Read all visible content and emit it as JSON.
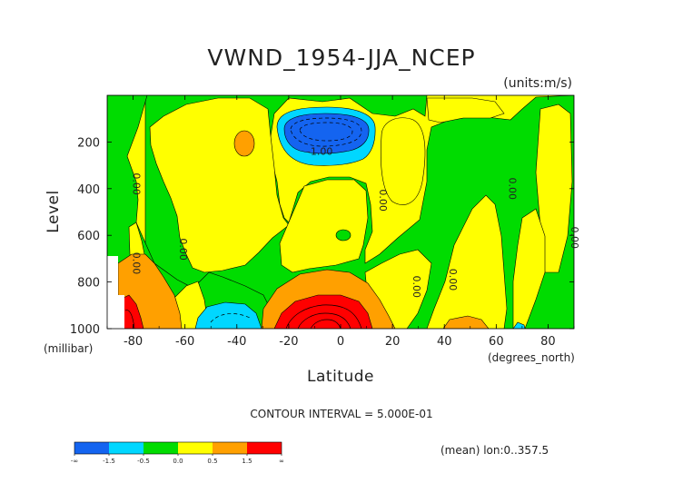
{
  "chart_data": {
    "type": "heatmap",
    "title": "VWND_1954-JJA_NCEP",
    "units": "(units:m/s)",
    "xlabel": "Latitude",
    "ylabel": "Level",
    "x_unit": "(degrees_north)",
    "y_unit": "(millibar)",
    "xlim": [
      -90,
      90
    ],
    "ylim": [
      1000,
      0
    ],
    "x_ticks": [
      -80,
      -60,
      -40,
      -20,
      0,
      20,
      40,
      60,
      80
    ],
    "y_ticks": [
      200,
      400,
      600,
      800,
      1000
    ],
    "contour_interval": "CONTOUR INTERVAL = 5.000E-01",
    "footnote": "(mean) lon:0..357.5",
    "contour_labels": [
      {
        "text": "-1.00",
        "x": -8,
        "y": 255
      },
      {
        "text": "0.00",
        "x": -80,
        "y": 380
      },
      {
        "text": "0.00",
        "x": -62,
        "y": 660
      },
      {
        "text": "0.00",
        "x": -80,
        "y": 720
      },
      {
        "text": "0.00",
        "x": 15,
        "y": 450
      },
      {
        "text": "0.00",
        "x": 28,
        "y": 820
      },
      {
        "text": "0.00",
        "x": 42,
        "y": 790
      },
      {
        "text": "0.00",
        "x": 65,
        "y": 400
      },
      {
        "text": "0.00",
        "x": 89,
        "y": 610
      }
    ],
    "colorbar": {
      "colors": [
        "#1464f0",
        "#00d7ff",
        "#00dc00",
        "#ffff00",
        "#ffa000",
        "#ff0000"
      ],
      "labels": [
        "-∞",
        "-1.5",
        "-0.5",
        "0.0",
        "0.5",
        "1.5",
        "∞"
      ]
    }
  },
  "colors": {
    "background_fill": "#ffff00",
    "green": "#00dc00",
    "cyan": "#00d7ff",
    "blue": "#1464f0",
    "orange": "#ffa000",
    "red": "#ff0000"
  }
}
